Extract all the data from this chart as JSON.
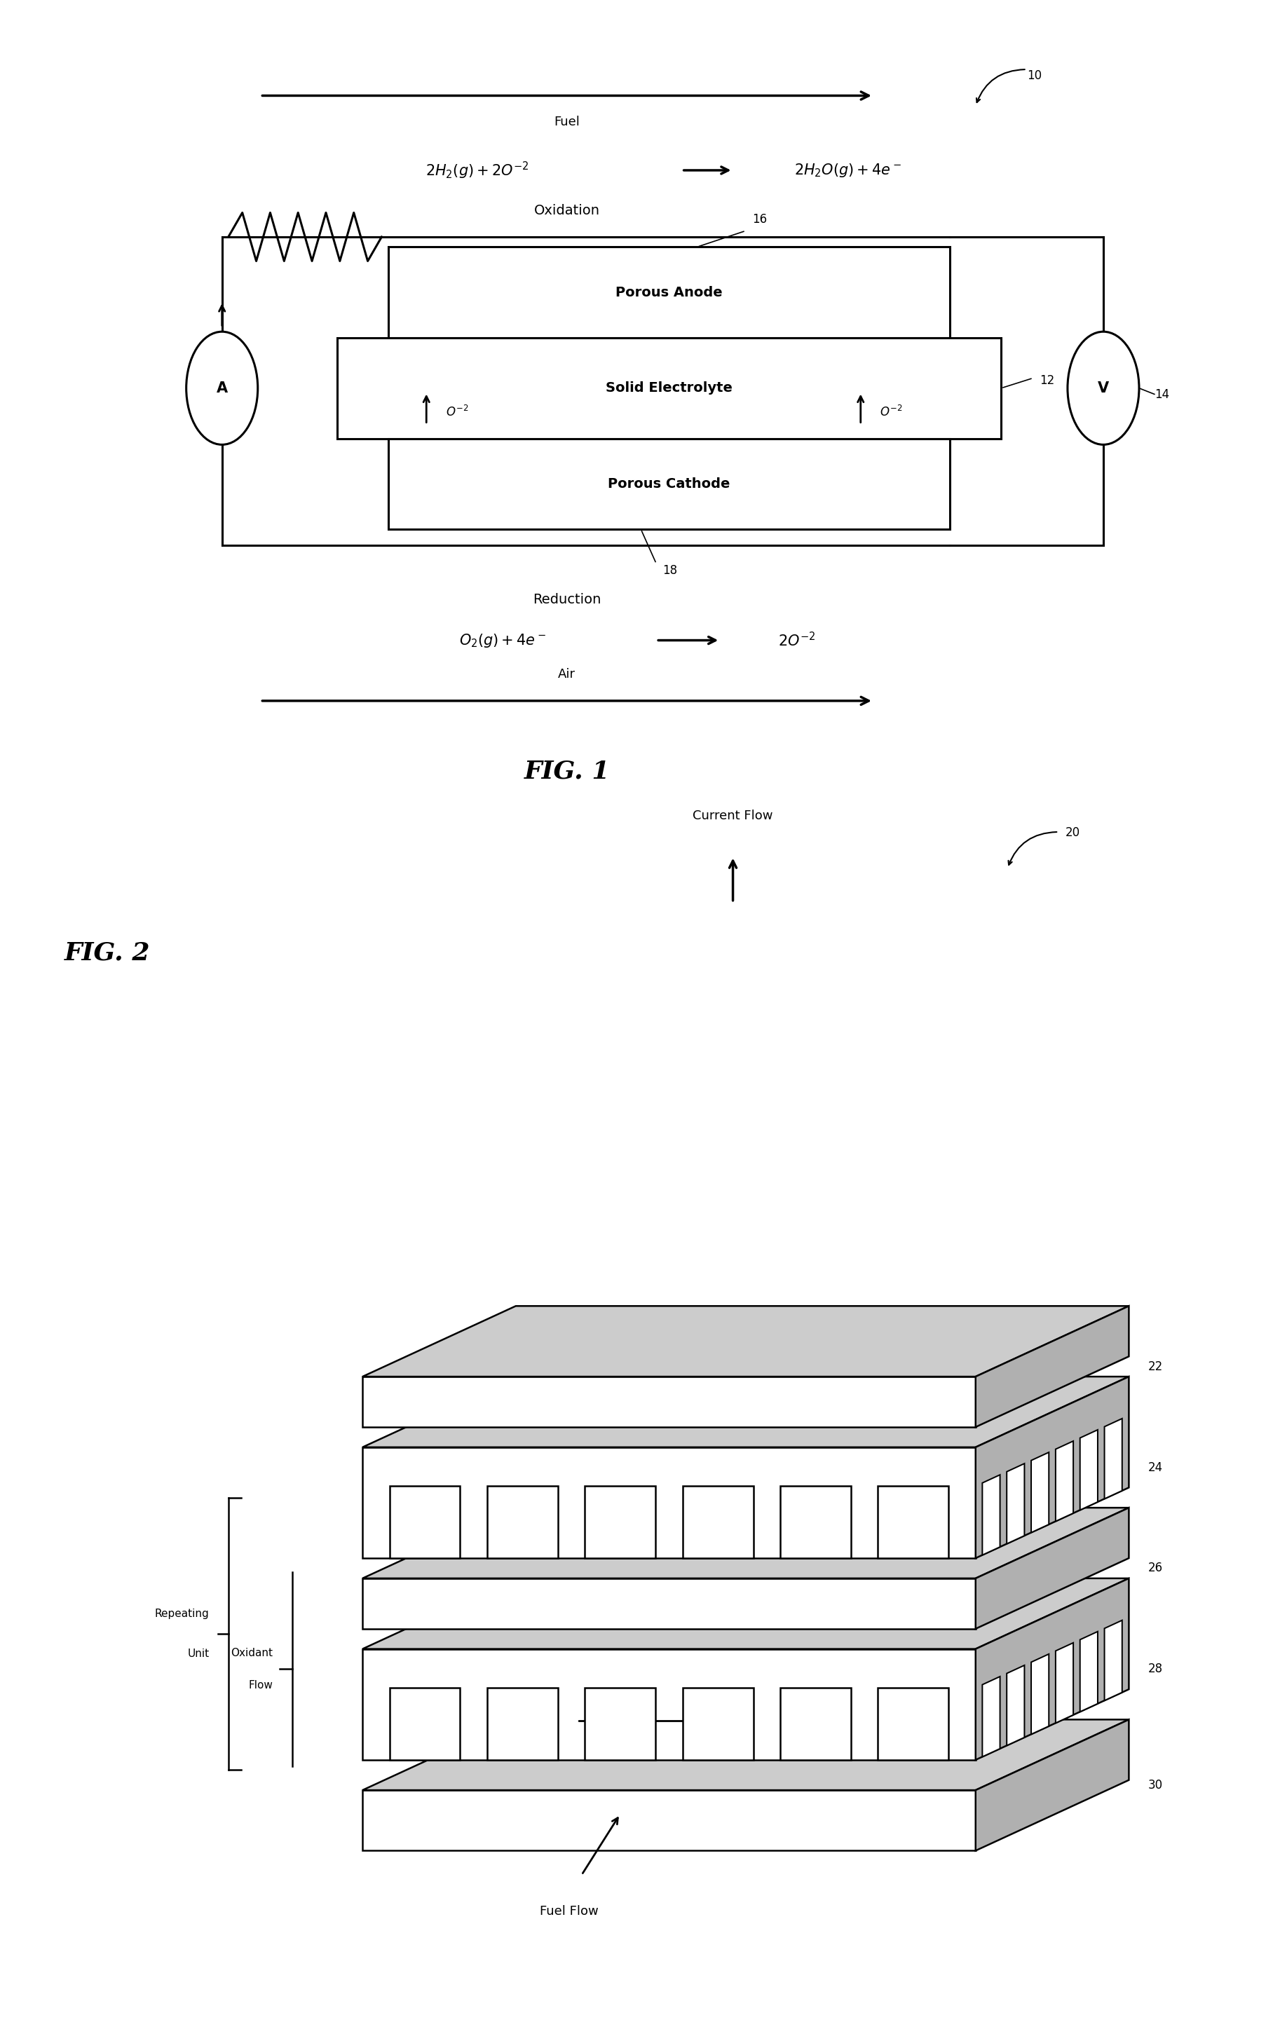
{
  "fig_width": 18.36,
  "fig_height": 28.92,
  "bg_color": "#ffffff",
  "fig1": {
    "title": "FIG. 1",
    "fuel_label": "Fuel",
    "air_label": "Air",
    "oxidation_label": "Oxidation",
    "reduction_label": "Reduction",
    "porous_anode": "Porous Anode",
    "solid_electrolyte": "Solid Electrolyte",
    "porous_cathode": "Porous Cathode",
    "ref_10": "10",
    "ref_12": "12",
    "ref_14": "14",
    "ref_16": "16",
    "ref_18": "18"
  },
  "fig2": {
    "title": "FIG. 2",
    "current_flow": "Current Flow",
    "oxidant_flow": "Oxidant\nFlow",
    "fuel_flow": "Fuel Flow",
    "repeating_unit": "Repeating\nUnit",
    "ref_20": "20",
    "ref_22": "22",
    "ref_24": "24",
    "ref_26": "26",
    "ref_28": "28",
    "ref_30": "30"
  }
}
